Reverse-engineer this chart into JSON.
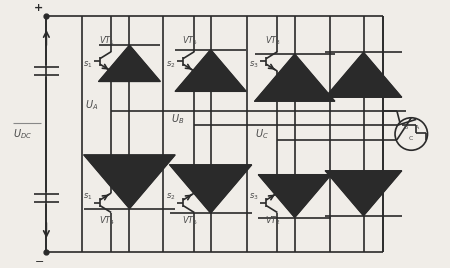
{
  "bg_color": "#f0ede8",
  "line_color": "#2a2a2a",
  "text_color": "#4a4a4a",
  "figsize": [
    4.5,
    2.68
  ],
  "dpi": 100,
  "vt_top_labels": [
    "VT_1",
    "VT_5",
    "VT_3"
  ],
  "vt_bot_labels": [
    "VT_4",
    "VT_6",
    "VT_2"
  ],
  "s_top_labels": [
    "s_1",
    "s_2",
    "s_3"
  ],
  "s_bot_labels": [
    "s_1",
    "s_2",
    "s_3"
  ],
  "ua_label": "U_A",
  "ub_label": "U_B",
  "uc_label": "U_C",
  "dc_label": "U_{DC}",
  "plus_sign": "+",
  "minus_sign": "-"
}
